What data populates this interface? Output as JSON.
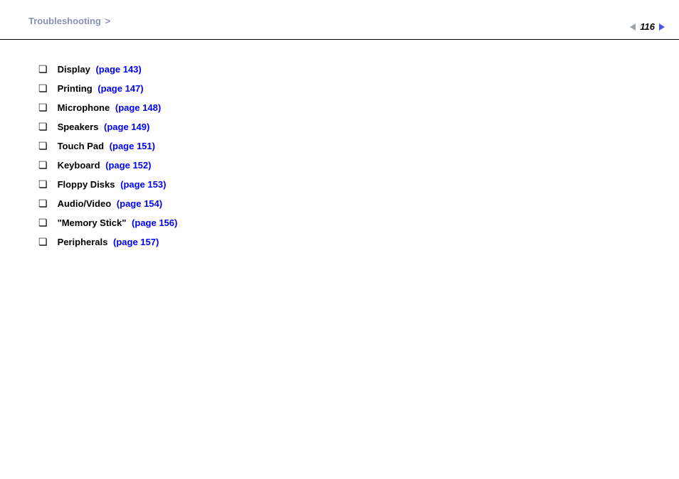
{
  "header": {
    "breadcrumb_title": "Troubleshooting",
    "breadcrumb_separator": ">",
    "page_number": "116"
  },
  "colors": {
    "breadcrumb_text": "#8a8fb8",
    "link": "#0000ff",
    "text": "#000000",
    "nav_arrow_left": "#9ca3af",
    "nav_arrow_right": "#4b5bd4",
    "divider": "#000000",
    "background": "#ffffff"
  },
  "typography": {
    "base_font": "Arial, Helvetica, sans-serif",
    "item_fontsize": 13,
    "item_fontweight": "bold",
    "breadcrumb_fontsize": 13,
    "page_number_fontsize": 13,
    "page_number_style": "italic bold"
  },
  "list": {
    "bullet_glyph": "❏",
    "items": [
      {
        "label": "Display",
        "link": "(page 143)"
      },
      {
        "label": "Printing",
        "link": "(page 147)"
      },
      {
        "label": "Microphone",
        "link": "(page 148)"
      },
      {
        "label": "Speakers",
        "link": "(page 149)"
      },
      {
        "label": "Touch Pad",
        "link": "(page 151)"
      },
      {
        "label": "Keyboard",
        "link": "(page 152)"
      },
      {
        "label": "Floppy Disks",
        "link": "(page 153)"
      },
      {
        "label": "Audio/Video",
        "link": "(page 154)"
      },
      {
        "label": "\"Memory Stick\"",
        "link": "(page 156)"
      },
      {
        "label": "Peripherals",
        "link": "(page 157)"
      }
    ]
  }
}
